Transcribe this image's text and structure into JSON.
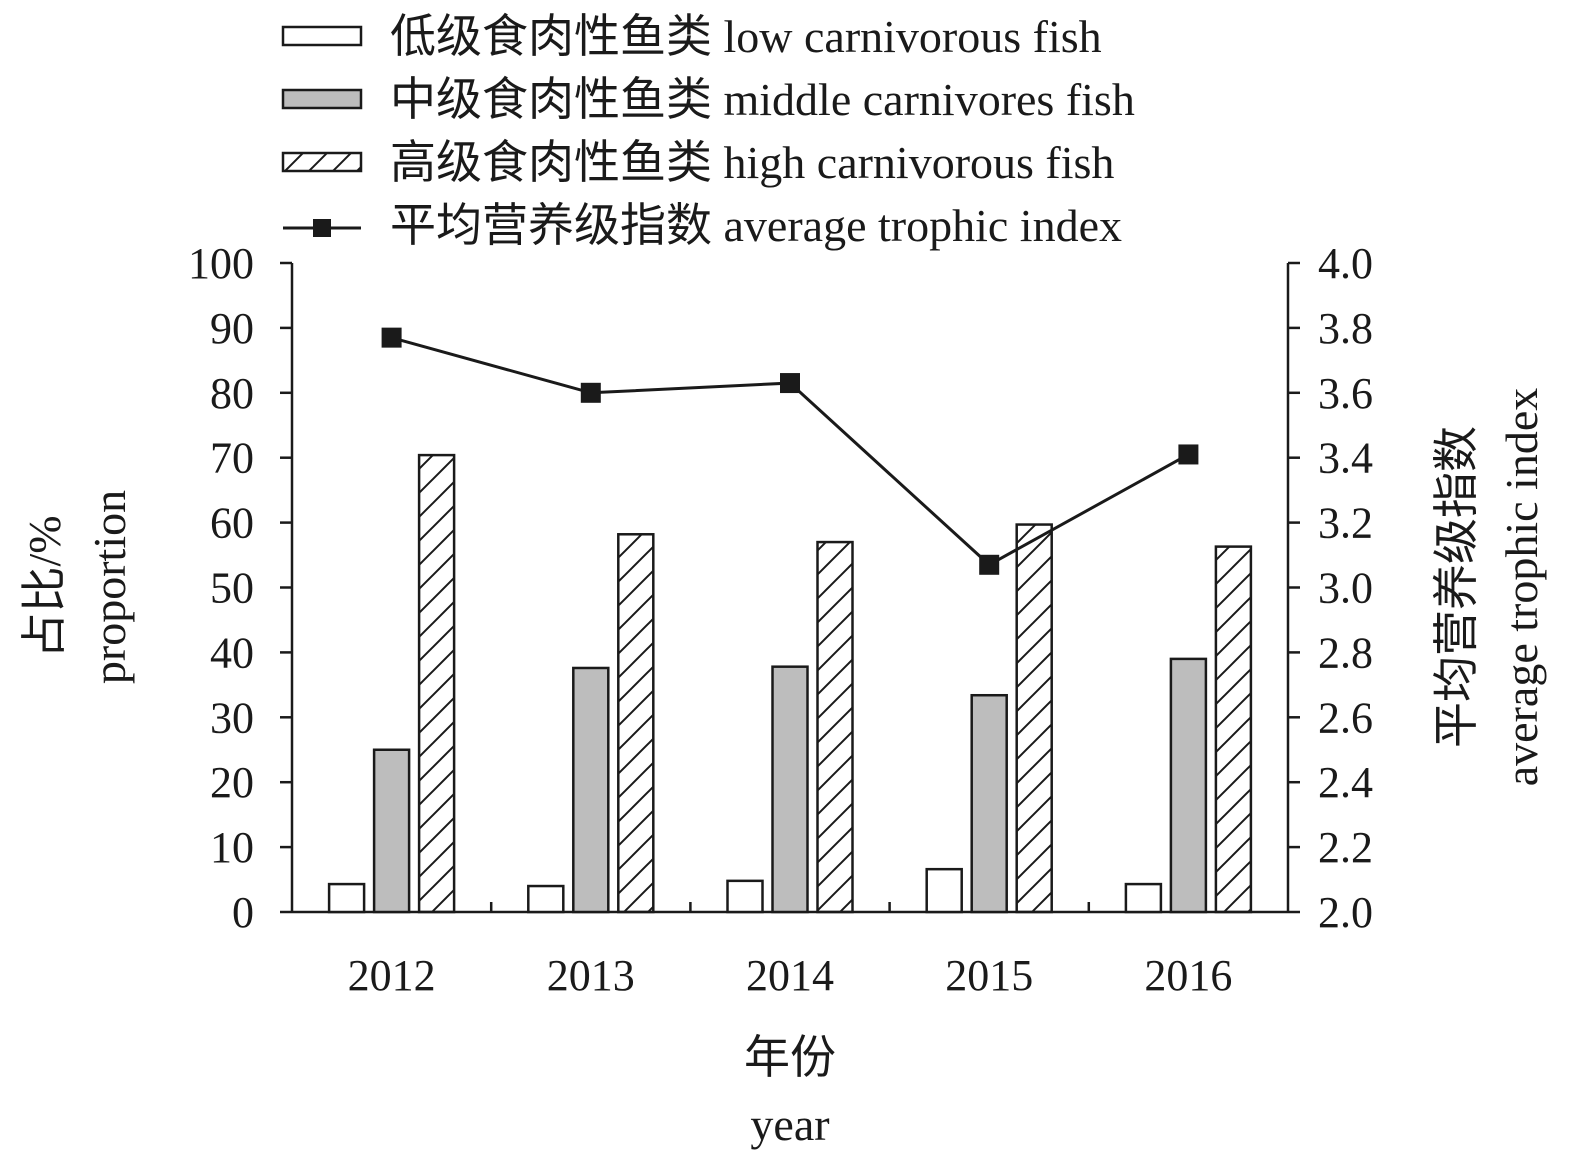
{
  "chart_data": {
    "type": "bar+line",
    "categories": [
      "2012",
      "2013",
      "2014",
      "2015",
      "2016"
    ],
    "series": [
      {
        "name": "低级食肉性鱼类 low carnivorous fish",
        "type": "bar",
        "style": "white",
        "values": [
          4.3,
          4.0,
          4.8,
          6.6,
          4.3
        ]
      },
      {
        "name": "中级食肉性鱼类 middle carnivores fish",
        "type": "bar",
        "style": "gray",
        "values": [
          25.0,
          37.6,
          37.8,
          33.4,
          39.0
        ]
      },
      {
        "name": "高级食肉性鱼类 high carnivorous fish",
        "type": "bar",
        "style": "hatched",
        "values": [
          70.4,
          58.2,
          57.0,
          59.7,
          56.3
        ]
      },
      {
        "name": "平均营养级指数 average trophic index",
        "type": "line",
        "axis": "right",
        "values": [
          3.77,
          3.6,
          3.63,
          3.07,
          3.41
        ]
      }
    ],
    "y_left": {
      "label_cn": "占比/%",
      "label_en": "proportion",
      "lim": [
        0,
        100
      ],
      "ticks": [
        "0",
        "10",
        "20",
        "30",
        "40",
        "50",
        "60",
        "70",
        "80",
        "90",
        "100"
      ]
    },
    "y_right": {
      "label_cn": "平均营养级指数",
      "label_en": "average trophic index",
      "lim": [
        2.0,
        4.0
      ],
      "ticks": [
        "2.0",
        "2.2",
        "2.4",
        "2.6",
        "2.8",
        "3.0",
        "3.2",
        "3.4",
        "3.6",
        "3.8",
        "4.0"
      ]
    },
    "x_axis": {
      "label_cn": "年份",
      "label_en": "year"
    },
    "legend_position": "top"
  },
  "colors": {
    "axis": "#1a1a1a",
    "bar_gray": "#bdbdbd",
    "bar_white": "#ffffff"
  }
}
